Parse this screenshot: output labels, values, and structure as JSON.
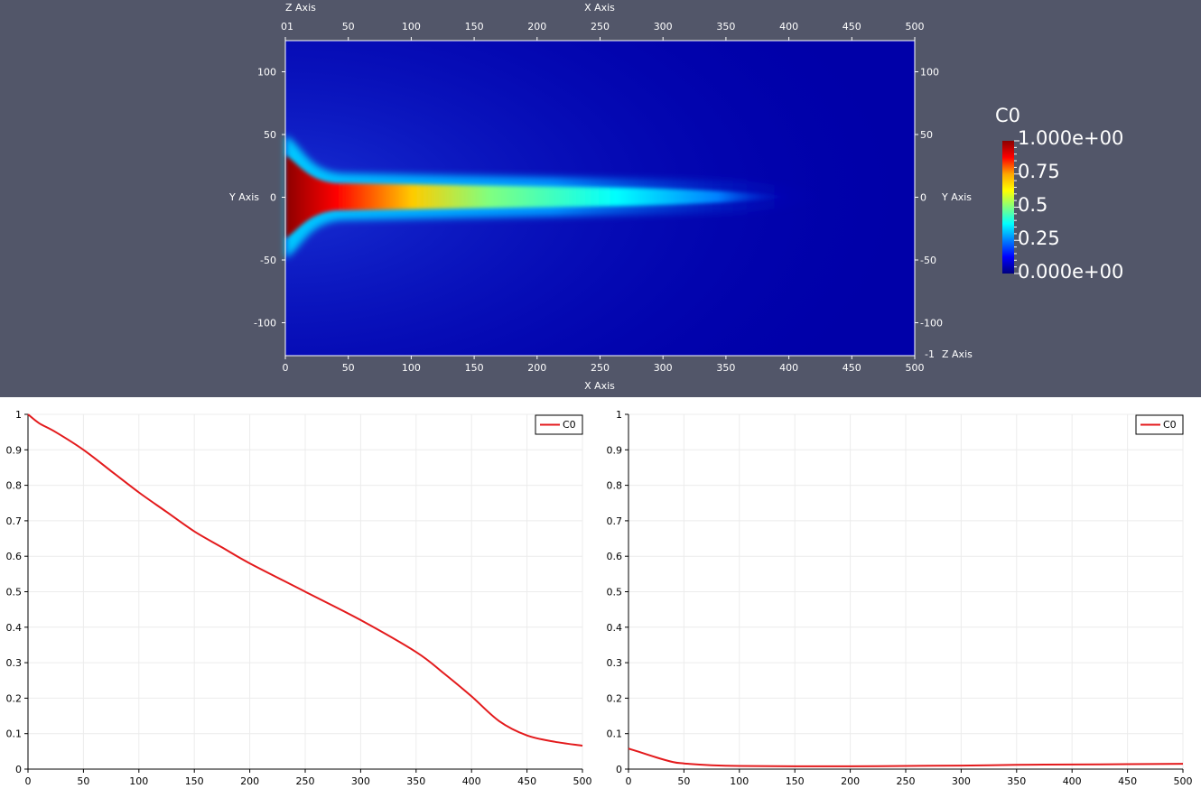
{
  "render_view": {
    "colormap": {
      "title": "C0",
      "labels": [
        "1.000e+00",
        "0.75",
        "0.5",
        "0.25",
        "0.000e+00"
      ],
      "stops": [
        "#8b0000",
        "#ff0000",
        "#ffa500",
        "#ffff00",
        "#80ff80",
        "#00ffff",
        "#0080ff",
        "#0000ff",
        "#00007f"
      ]
    },
    "background": "#525669",
    "axes": {
      "x_axis_title": "X Axis",
      "y_axis_title": "Y Axis",
      "z_axis_title": "Z Axis",
      "x_ticks": [
        "0",
        "50",
        "100",
        "150",
        "200",
        "250",
        "300",
        "350",
        "400",
        "450",
        "500"
      ],
      "y_ticks": [
        "100",
        "50",
        "0",
        "-50",
        "-100"
      ],
      "z_top_label": "01",
      "z_bottom_label": "-1"
    }
  },
  "chart_data": [
    {
      "type": "line",
      "title": "",
      "xlabel": "",
      "ylabel": "",
      "xlim": [
        0,
        500
      ],
      "ylim": [
        0,
        1
      ],
      "x_ticks": [
        0,
        50,
        100,
        150,
        200,
        250,
        300,
        350,
        400,
        450,
        500
      ],
      "y_ticks": [
        0,
        0.1,
        0.2,
        0.3,
        0.4,
        0.5,
        0.6,
        0.7,
        0.8,
        0.9,
        1
      ],
      "grid": true,
      "legend_position": "top-right",
      "series": [
        {
          "name": "C0",
          "color": "#e31a1c",
          "x": [
            0,
            10,
            25,
            50,
            75,
            100,
            125,
            150,
            175,
            200,
            250,
            300,
            350,
            375,
            400,
            425,
            450,
            475,
            500
          ],
          "values": [
            1.0,
            0.975,
            0.95,
            0.9,
            0.84,
            0.78,
            0.725,
            0.67,
            0.625,
            0.58,
            0.5,
            0.42,
            0.33,
            0.27,
            0.205,
            0.135,
            0.095,
            0.077,
            0.066
          ]
        }
      ]
    },
    {
      "type": "line",
      "title": "",
      "xlabel": "",
      "ylabel": "",
      "xlim": [
        0,
        500
      ],
      "ylim": [
        0,
        1
      ],
      "x_ticks": [
        0,
        50,
        100,
        150,
        200,
        250,
        300,
        350,
        400,
        450,
        500
      ],
      "y_ticks": [
        0,
        0.1,
        0.2,
        0.3,
        0.4,
        0.5,
        0.6,
        0.7,
        0.8,
        0.9,
        1
      ],
      "grid": true,
      "legend_position": "top-right",
      "series": [
        {
          "name": "C0",
          "color": "#e31a1c",
          "x": [
            0,
            10,
            25,
            40,
            50,
            75,
            100,
            150,
            200,
            250,
            300,
            350,
            400,
            450,
            500
          ],
          "values": [
            0.058,
            0.048,
            0.033,
            0.02,
            0.016,
            0.011,
            0.009,
            0.008,
            0.008,
            0.009,
            0.01,
            0.012,
            0.013,
            0.014,
            0.015
          ]
        }
      ]
    }
  ]
}
